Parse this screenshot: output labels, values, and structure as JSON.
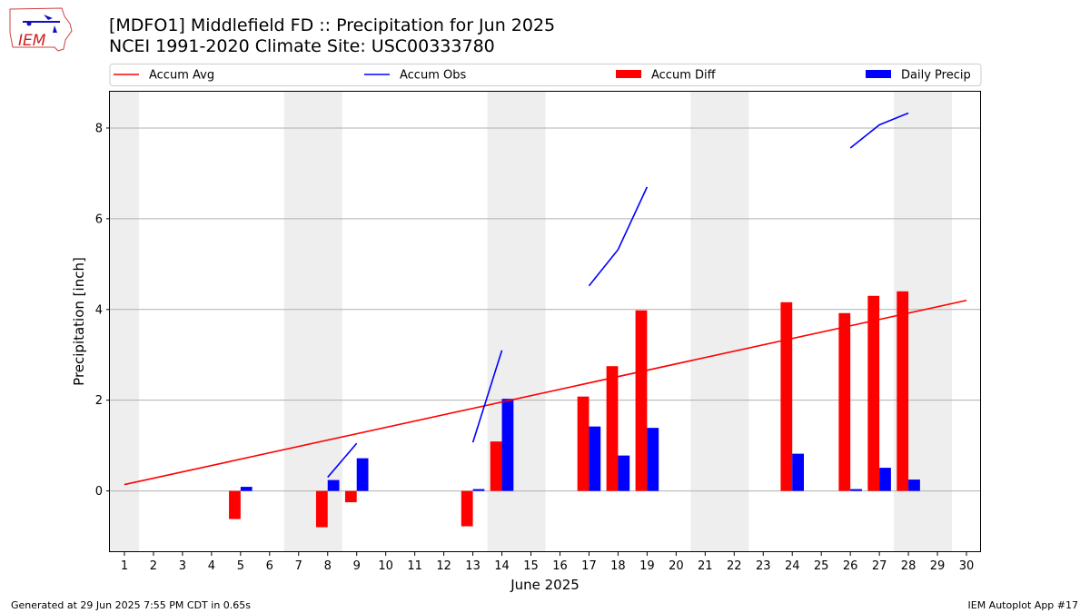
{
  "title_line1": "[MDFO1] Middlefield FD :: Precipitation for Jun 2025",
  "title_line2": "NCEI 1991-2020 Climate Site: USC00333780",
  "footer_left": "Generated at 29 Jun 2025 7:55 PM CDT in 0.65s",
  "footer_right": "IEM Autoplot App #17",
  "logo_text": "IEM",
  "chart_data": {
    "type": "bar",
    "xlabel": "June 2025",
    "ylabel": "Precipitation [inch]",
    "x": [
      1,
      2,
      3,
      4,
      5,
      6,
      7,
      8,
      9,
      10,
      11,
      12,
      13,
      14,
      15,
      16,
      17,
      18,
      19,
      20,
      21,
      22,
      23,
      24,
      25,
      26,
      27,
      28,
      29,
      30
    ],
    "xlim": [
      0.5,
      30.5
    ],
    "ylim": [
      -1.35,
      8.8
    ],
    "yticks": [
      0,
      2,
      4,
      6,
      8
    ],
    "grid": true,
    "legend_position": "top",
    "weekend_shading": [
      [
        0.5,
        1.5
      ],
      [
        6.5,
        8.5
      ],
      [
        13.5,
        15.5
      ],
      [
        20.5,
        22.5
      ],
      [
        27.5,
        29.5
      ]
    ],
    "weekend_color": "#eeeeee",
    "series": [
      {
        "name": "Accum Avg",
        "kind": "line",
        "color": "#ff0000",
        "points": [
          [
            1,
            0.14
          ],
          [
            30,
            4.2
          ]
        ]
      },
      {
        "name": "Accum Obs",
        "kind": "line",
        "color": "#0000ff",
        "segments": [
          [
            [
              8,
              0.3
            ],
            [
              9,
              1.05
            ]
          ],
          [
            [
              13,
              1.07
            ],
            [
              14,
              3.1
            ]
          ],
          [
            [
              17,
              4.52
            ],
            [
              18,
              5.32
            ],
            [
              19,
              6.7
            ]
          ],
          [
            [
              26,
              7.56
            ],
            [
              27,
              8.07
            ],
            [
              28,
              8.33
            ]
          ]
        ]
      },
      {
        "name": "Accum Diff",
        "kind": "bar",
        "color": "#ff0000",
        "values": [
          null,
          null,
          null,
          null,
          -0.62,
          null,
          null,
          -0.8,
          -0.25,
          null,
          null,
          null,
          -0.78,
          1.09,
          null,
          null,
          2.08,
          2.75,
          3.98,
          null,
          null,
          null,
          null,
          4.16,
          null,
          3.92,
          4.3,
          4.4,
          null,
          null
        ]
      },
      {
        "name": "Daily Precip",
        "kind": "bar",
        "color": "#0000ff",
        "values": [
          null,
          null,
          null,
          null,
          0.09,
          null,
          null,
          0.24,
          0.72,
          null,
          null,
          null,
          0.04,
          2.03,
          null,
          null,
          1.42,
          0.78,
          1.39,
          null,
          null,
          null,
          null,
          0.82,
          null,
          0.04,
          0.51,
          0.25,
          null,
          null
        ]
      }
    ]
  }
}
